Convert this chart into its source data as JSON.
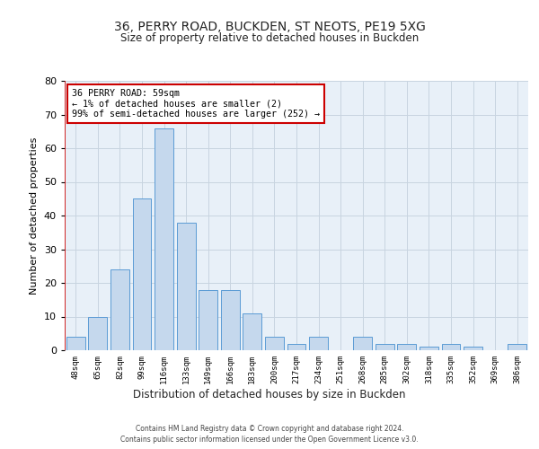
{
  "title1": "36, PERRY ROAD, BUCKDEN, ST NEOTS, PE19 5XG",
  "title2": "Size of property relative to detached houses in Buckden",
  "xlabel": "Distribution of detached houses by size in Buckden",
  "ylabel": "Number of detached properties",
  "bar_labels": [
    "48sqm",
    "65sqm",
    "82sqm",
    "99sqm",
    "116sqm",
    "133sqm",
    "149sqm",
    "166sqm",
    "183sqm",
    "200sqm",
    "217sqm",
    "234sqm",
    "251sqm",
    "268sqm",
    "285sqm",
    "302sqm",
    "318sqm",
    "335sqm",
    "352sqm",
    "369sqm",
    "386sqm"
  ],
  "bar_values": [
    4,
    10,
    24,
    45,
    66,
    38,
    18,
    18,
    11,
    4,
    2,
    4,
    0,
    4,
    2,
    2,
    1,
    2,
    1,
    0,
    2
  ],
  "bar_color": "#c5d8ed",
  "bar_edge_color": "#5b9bd5",
  "ylim": [
    0,
    80
  ],
  "yticks": [
    0,
    10,
    20,
    30,
    40,
    50,
    60,
    70,
    80
  ],
  "grid_color": "#c8d4e0",
  "bg_color": "#e8f0f8",
  "annotation_title": "36 PERRY ROAD: 59sqm",
  "annotation_line1": "← 1% of detached houses are smaller (2)",
  "annotation_line2": "99% of semi-detached houses are larger (252) →",
  "annotation_box_color": "#ffffff",
  "annotation_border_color": "#cc0000",
  "property_line_color": "#cc0000",
  "footer1": "Contains HM Land Registry data © Crown copyright and database right 2024.",
  "footer2": "Contains public sector information licensed under the Open Government Licence v3.0."
}
